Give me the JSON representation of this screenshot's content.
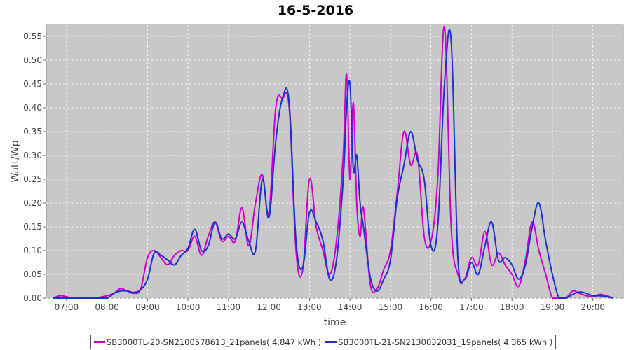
{
  "chart_data": {
    "type": "line",
    "title": "16-5-2016",
    "xlabel": "time",
    "ylabel": "Watt/Wp",
    "xlim": [
      "06:30",
      "20:45"
    ],
    "ylim": [
      0,
      0.575
    ],
    "grid": true,
    "legend_placement": "bottom",
    "x_ticks": [
      "07:00",
      "08:00",
      "09:00",
      "10:00",
      "11:00",
      "12:00",
      "13:00",
      "14:00",
      "15:00",
      "16:00",
      "17:00",
      "18:00",
      "19:00",
      "20:00"
    ],
    "y_ticks": [
      "0.00",
      "0.05",
      "0.10",
      "0.15",
      "0.20",
      "0.25",
      "0.30",
      "0.35",
      "0.40",
      "0.45",
      "0.50",
      "0.55"
    ],
    "series": [
      {
        "name": "SB3000TL-20-SN2100578613_21panels( 4.847 kWh )",
        "color": "#cc00cc",
        "x": [
          "06:40",
          "06:50",
          "07:00",
          "07:10",
          "07:20",
          "07:40",
          "08:00",
          "08:10",
          "08:20",
          "08:30",
          "08:40",
          "08:50",
          "09:00",
          "09:10",
          "09:20",
          "09:30",
          "09:40",
          "09:50",
          "10:00",
          "10:10",
          "10:20",
          "10:30",
          "10:40",
          "10:50",
          "11:00",
          "11:10",
          "11:20",
          "11:30",
          "11:40",
          "11:50",
          "12:00",
          "12:10",
          "12:20",
          "12:30",
          "12:40",
          "12:50",
          "13:00",
          "13:10",
          "13:20",
          "13:30",
          "13:40",
          "13:50",
          "13:55",
          "14:00",
          "14:05",
          "14:10",
          "14:15",
          "14:20",
          "14:30",
          "14:40",
          "14:50",
          "15:00",
          "15:10",
          "15:20",
          "15:30",
          "15:40",
          "15:50",
          "16:00",
          "16:10",
          "16:20",
          "16:30",
          "16:40",
          "16:50",
          "17:00",
          "17:10",
          "17:20",
          "17:30",
          "17:40",
          "17:50",
          "18:00",
          "18:10",
          "18:20",
          "18:30",
          "18:40",
          "18:50",
          "19:00",
          "19:10",
          "19:20",
          "19:30",
          "19:40",
          "19:50",
          "20:00",
          "20:10",
          "20:20",
          "20:30"
        ],
        "y": [
          0,
          0.005,
          0.003,
          0,
          0,
          0,
          0.005,
          0.01,
          0.02,
          0.015,
          0.01,
          0.02,
          0.085,
          0.1,
          0.085,
          0.07,
          0.09,
          0.1,
          0.1,
          0.13,
          0.09,
          0.13,
          0.16,
          0.12,
          0.13,
          0.12,
          0.19,
          0.11,
          0.2,
          0.26,
          0.18,
          0.4,
          0.42,
          0.4,
          0.1,
          0.06,
          0.25,
          0.15,
          0.1,
          0.05,
          0.12,
          0.3,
          0.47,
          0.25,
          0.41,
          0.2,
          0.13,
          0.19,
          0.03,
          0.02,
          0.06,
          0.1,
          0.22,
          0.35,
          0.28,
          0.3,
          0.13,
          0.12,
          0.25,
          0.57,
          0.15,
          0.05,
          0.04,
          0.085,
          0.07,
          0.14,
          0.07,
          0.095,
          0.07,
          0.05,
          0.025,
          0.08,
          0.16,
          0.1,
          0.05,
          0,
          0,
          0,
          0.015,
          0.01,
          0.005,
          0.003,
          0.008,
          0.005,
          0
        ],
        "note": ""
      },
      {
        "name": "SB3000TL-21-SN2130032031_19panels( 4.365 kWh )",
        "color": "#1a2fcc",
        "x": [
          "06:40",
          "06:50",
          "07:00",
          "07:10",
          "07:20",
          "07:40",
          "08:00",
          "08:10",
          "08:20",
          "08:30",
          "08:40",
          "08:50",
          "09:00",
          "09:10",
          "09:20",
          "09:30",
          "09:40",
          "09:50",
          "10:00",
          "10:10",
          "10:20",
          "10:30",
          "10:40",
          "10:50",
          "11:00",
          "11:10",
          "11:20",
          "11:30",
          "11:40",
          "11:50",
          "12:00",
          "12:10",
          "12:20",
          "12:30",
          "12:40",
          "12:50",
          "13:00",
          "13:10",
          "13:20",
          "13:30",
          "13:40",
          "13:50",
          "13:55",
          "14:00",
          "14:05",
          "14:10",
          "14:15",
          "14:20",
          "14:30",
          "14:40",
          "14:50",
          "15:00",
          "15:10",
          "15:20",
          "15:30",
          "15:40",
          "15:50",
          "16:00",
          "16:10",
          "16:20",
          "16:30",
          "16:40",
          "16:50",
          "17:00",
          "17:10",
          "17:20",
          "17:30",
          "17:40",
          "17:50",
          "18:00",
          "18:10",
          "18:20",
          "18:30",
          "18:40",
          "18:50",
          "19:00",
          "19:10",
          "19:20",
          "19:30",
          "19:40",
          "19:50",
          "20:00",
          "20:10",
          "20:20",
          "20:30"
        ],
        "y": [
          0,
          0,
          0,
          0,
          0,
          0,
          0,
          0.01,
          0.015,
          0.015,
          0.012,
          0.018,
          0.04,
          0.095,
          0.09,
          0.08,
          0.07,
          0.09,
          0.105,
          0.145,
          0.1,
          0.11,
          0.16,
          0.125,
          0.135,
          0.125,
          0.16,
          0.12,
          0.1,
          0.25,
          0.17,
          0.33,
          0.42,
          0.41,
          0.12,
          0.065,
          0.18,
          0.16,
          0.12,
          0.04,
          0.08,
          0.25,
          0.4,
          0.45,
          0.27,
          0.3,
          0.2,
          0.15,
          0.045,
          0.015,
          0.04,
          0.08,
          0.21,
          0.28,
          0.35,
          0.29,
          0.25,
          0.11,
          0.15,
          0.45,
          0.54,
          0.08,
          0.04,
          0.075,
          0.05,
          0.11,
          0.16,
          0.08,
          0.085,
          0.07,
          0.04,
          0.07,
          0.15,
          0.2,
          0.12,
          0.05,
          0,
          0,
          0.008,
          0.013,
          0.01,
          0.005,
          0.005,
          0.003,
          0
        ],
        "note": ""
      }
    ]
  }
}
